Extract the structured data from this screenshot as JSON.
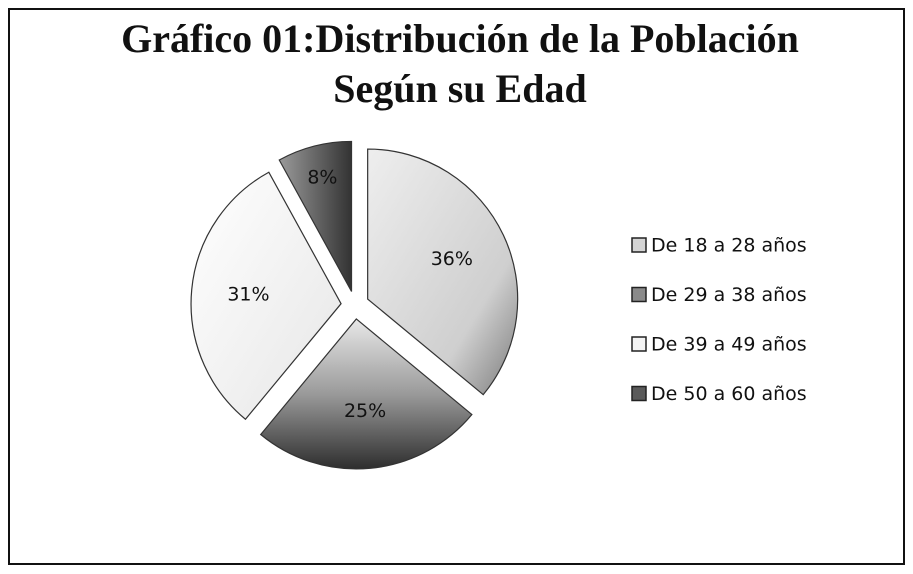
{
  "chart_data": {
    "type": "pie",
    "title": "Gráfico 01:Distribución de la Población Según su Edad",
    "categories": [
      "De 18 a 28 años",
      "De 29 a 38 años",
      "De 39 a 49 años",
      "De 50 a 60 años"
    ],
    "values": [
      36,
      25,
      31,
      8
    ],
    "value_labels": [
      "36%",
      "25%",
      "31%",
      "8%"
    ],
    "colors": [
      "#d4d4d4",
      "#8a8a8a",
      "#f3f3f3",
      "#5a5a5a"
    ],
    "legend": "right"
  }
}
